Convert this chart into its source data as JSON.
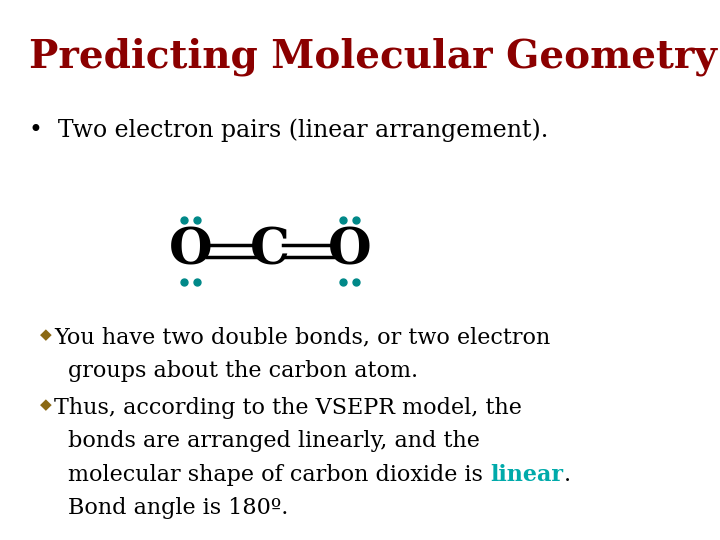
{
  "title": "Predicting Molecular Geometry",
  "title_color": "#8B0000",
  "title_fontsize": 28,
  "bullet1": "Two electron pairs (linear arrangement).",
  "bullet1_fontsize": 17,
  "body_fontsize": 16,
  "body_color": "#000000",
  "bullet_color": "#8B6914",
  "linear_color": "#00AAAA",
  "teal_dot_color": "#008888",
  "background_color": "#FFFFFF",
  "molecule_fontsize": 36,
  "line1_text1": "You have two double bonds, or two electron",
  "line1_text2": "groups about the carbon atom.",
  "line2_text1": "Thus, according to the VSEPR model, the",
  "line2_text2": "bonds are arranged linearly, and the",
  "line2_text3": "molecular shape of carbon dioxide is ",
  "line2_linear": "linear",
  "line2_text4": ".",
  "line3_text1": "Bond angle is 180º."
}
